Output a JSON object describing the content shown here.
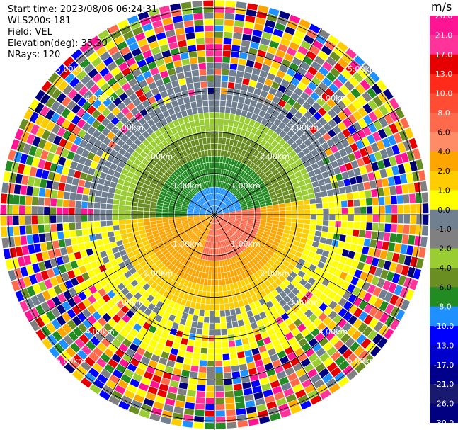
{
  "info": {
    "start_time": "Start time: 2023/08/06 06:24:31",
    "instrument": "WLS200s-181",
    "field": "Field: VEL",
    "elevation": "Elevation(deg): 35.30",
    "nrays": "NRays: 120"
  },
  "colorbar": {
    "unit": "m/s",
    "ticks": [
      "26.0",
      "21.0",
      "17.0",
      "13.0",
      "10.0",
      "8.0",
      "6.0",
      "4.0",
      "2.0",
      "1.0",
      "0.0",
      "-1.0",
      "-2.0",
      "-4.0",
      "-6.0",
      "-8.0",
      "-10.0",
      "-13.0",
      "-17.0",
      "-21.0",
      "-26.0",
      "-30.0"
    ],
    "colors": [
      "#ff1493",
      "#ff3399",
      "#e60000",
      "#ff2a1a",
      "#ff4d33",
      "#ff6a4d",
      "#ff8c66",
      "#ffa500",
      "#ffcc00",
      "#ffff00",
      "#708090",
      "#808080",
      "#9acd32",
      "#6b8e23",
      "#228b22",
      "#1e90ff",
      "#0000ff",
      "#0000cd",
      "#00008b",
      "#191970",
      "#000080"
    ]
  },
  "chart_data": {
    "type": "heatmap",
    "subtype": "ppi-polar",
    "field": "VEL",
    "units": "m/s",
    "nrays": 120,
    "range_rings_km": [
      1.0,
      2.0,
      3.0,
      4.0,
      5.0
    ],
    "ring_labels": [
      "1.00km",
      "2.00km",
      "3.00km",
      "4.00km",
      "5.00km"
    ],
    "vmin": -30.0,
    "vmax": 26.0
  }
}
